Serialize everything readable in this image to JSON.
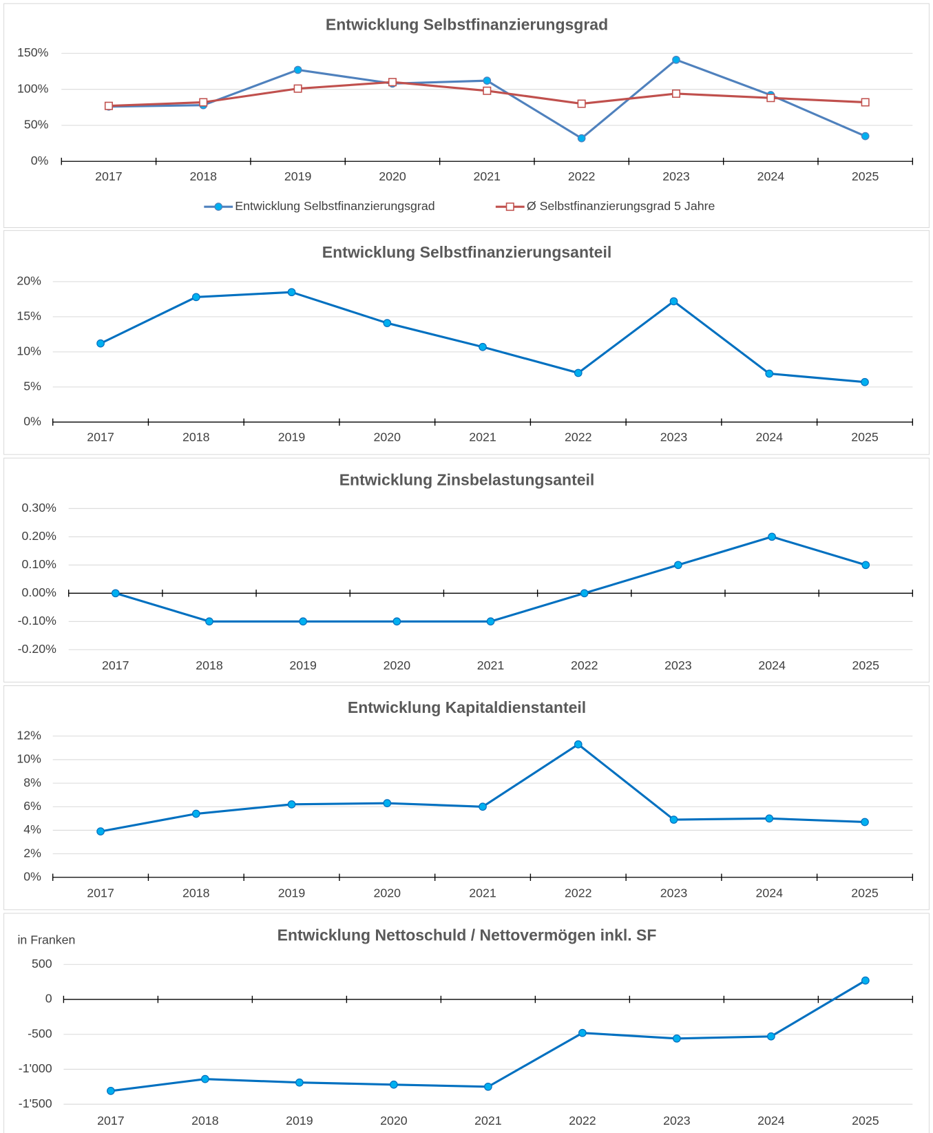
{
  "chart_data": [
    {
      "type": "line",
      "title": "Entwicklung Selbstfinanzierungsgrad",
      "categories": [
        "2017",
        "2018",
        "2019",
        "2020",
        "2021",
        "2022",
        "2023",
        "2024",
        "2025"
      ],
      "series": [
        {
          "name": "Entwicklung Selbstfinanzierungsgrad",
          "color": "#4f81bd",
          "marker": "circle",
          "marker_color": "#00b0f0",
          "values": [
            76,
            78,
            127,
            108,
            112,
            32,
            141,
            92,
            35
          ]
        },
        {
          "name": "Ø Selbstfinanzierungsgrad 5 Jahre",
          "color": "#c0504d",
          "marker": "square",
          "marker_color": "#ffffff",
          "values": [
            77,
            82,
            101,
            110,
            98,
            80,
            94,
            88,
            82
          ]
        }
      ],
      "ylim": [
        0,
        150
      ],
      "yticks": [
        {
          "value": 0,
          "label": "0%"
        },
        {
          "value": 50,
          "label": "50%"
        },
        {
          "value": 100,
          "label": "100%"
        },
        {
          "value": 150,
          "label": "150%"
        }
      ],
      "grid": true,
      "legend": "bottom"
    },
    {
      "type": "line",
      "title": "Entwicklung Selbstfinanzierungsanteil",
      "categories": [
        "2017",
        "2018",
        "2019",
        "2020",
        "2021",
        "2022",
        "2023",
        "2024",
        "2025"
      ],
      "values": [
        11.2,
        17.8,
        18.5,
        14.1,
        10.7,
        7.0,
        17.2,
        6.9,
        5.7
      ],
      "color": "#0070c0",
      "marker": "circle",
      "marker_color": "#00b0f0",
      "ylim": [
        0,
        20
      ],
      "yticks": [
        {
          "value": 0,
          "label": "0%"
        },
        {
          "value": 5,
          "label": "5%"
        },
        {
          "value": 10,
          "label": "10%"
        },
        {
          "value": 15,
          "label": "15%"
        },
        {
          "value": 20,
          "label": "20%"
        }
      ],
      "grid": true
    },
    {
      "type": "line",
      "title": "Entwicklung Zinsbelastungsanteil",
      "categories": [
        "2017",
        "2018",
        "2019",
        "2020",
        "2021",
        "2022",
        "2023",
        "2024",
        "2025"
      ],
      "values": [
        0,
        -0.1,
        -0.1,
        -0.1,
        -0.1,
        0,
        0.1,
        0.2,
        0.1
      ],
      "color": "#0070c0",
      "marker": "circle",
      "marker_color": "#00b0f0",
      "ylim": [
        -0.2,
        0.3
      ],
      "yticks": [
        {
          "value": -0.2,
          "label": "-0.20%"
        },
        {
          "value": -0.1,
          "label": "-0.10%"
        },
        {
          "value": 0,
          "label": "0.00%"
        },
        {
          "value": 0.1,
          "label": "0.10%"
        },
        {
          "value": 0.2,
          "label": "0.20%"
        },
        {
          "value": 0.3,
          "label": "0.30%"
        }
      ],
      "grid": true
    },
    {
      "type": "line",
      "title": "Entwicklung Kapitaldienstanteil",
      "categories": [
        "2017",
        "2018",
        "2019",
        "2020",
        "2021",
        "2022",
        "2023",
        "2024",
        "2025"
      ],
      "values": [
        3.9,
        5.4,
        6.2,
        6.3,
        6.0,
        11.3,
        4.9,
        5.0,
        4.7
      ],
      "color": "#0070c0",
      "marker": "circle",
      "marker_color": "#00b0f0",
      "ylim": [
        0,
        12
      ],
      "yticks": [
        {
          "value": 0,
          "label": "0%"
        },
        {
          "value": 2,
          "label": "2%"
        },
        {
          "value": 4,
          "label": "4%"
        },
        {
          "value": 6,
          "label": "6%"
        },
        {
          "value": 8,
          "label": "8%"
        },
        {
          "value": 10,
          "label": "10%"
        },
        {
          "value": 12,
          "label": "12%"
        }
      ],
      "grid": true
    },
    {
      "type": "line",
      "title": "Entwicklung Nettoschuld / Nettovermögen inkl. SF",
      "y_label": "in Franken",
      "categories": [
        "2017",
        "2018",
        "2019",
        "2020",
        "2021",
        "2022",
        "2023",
        "2024",
        "2025"
      ],
      "values": [
        -1310,
        -1140,
        -1190,
        -1220,
        -1250,
        -480,
        -560,
        -530,
        270
      ],
      "color": "#0070c0",
      "marker": "circle",
      "marker_color": "#00b0f0",
      "ylim": [
        -1500,
        500
      ],
      "yticks": [
        {
          "value": -1500,
          "label": "-1'500"
        },
        {
          "value": -1000,
          "label": "-1'000"
        },
        -500,
        0,
        500
      ],
      "grid": true
    }
  ]
}
